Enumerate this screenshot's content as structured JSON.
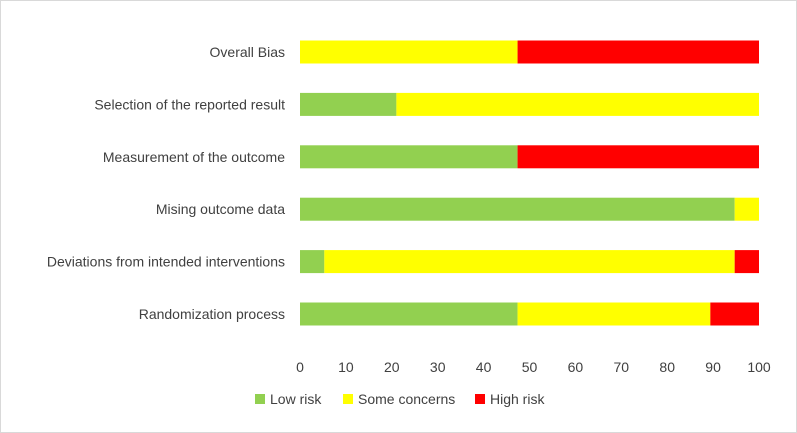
{
  "chart_data": {
    "type": "bar",
    "orientation": "horizontal",
    "stacked": true,
    "categories": [
      "Overall Bias",
      "Selection of the reported result",
      "Measurement of the outcome",
      "Mising outcome data",
      "Deviations from intended interventions",
      "Randomization process"
    ],
    "series": [
      {
        "name": "Low risk",
        "color": "#92d050",
        "values": [
          0,
          21,
          47.4,
          94.7,
          5.3,
          47.4
        ]
      },
      {
        "name": "Some concerns",
        "color": "#ffff00",
        "values": [
          47.4,
          79,
          0,
          5.3,
          89.4,
          42
        ]
      },
      {
        "name": "High risk",
        "color": "#ff0000",
        "values": [
          52.6,
          0,
          52.6,
          0,
          5.3,
          10.6
        ]
      }
    ],
    "xticks": [
      "0",
      "10",
      "20",
      "30",
      "40",
      "50",
      "60",
      "70",
      "80",
      "90",
      "100"
    ],
    "xlim": [
      0,
      100
    ],
    "title": "",
    "xlabel": "",
    "ylabel": "",
    "grid": false,
    "legend_position": "bottom"
  }
}
